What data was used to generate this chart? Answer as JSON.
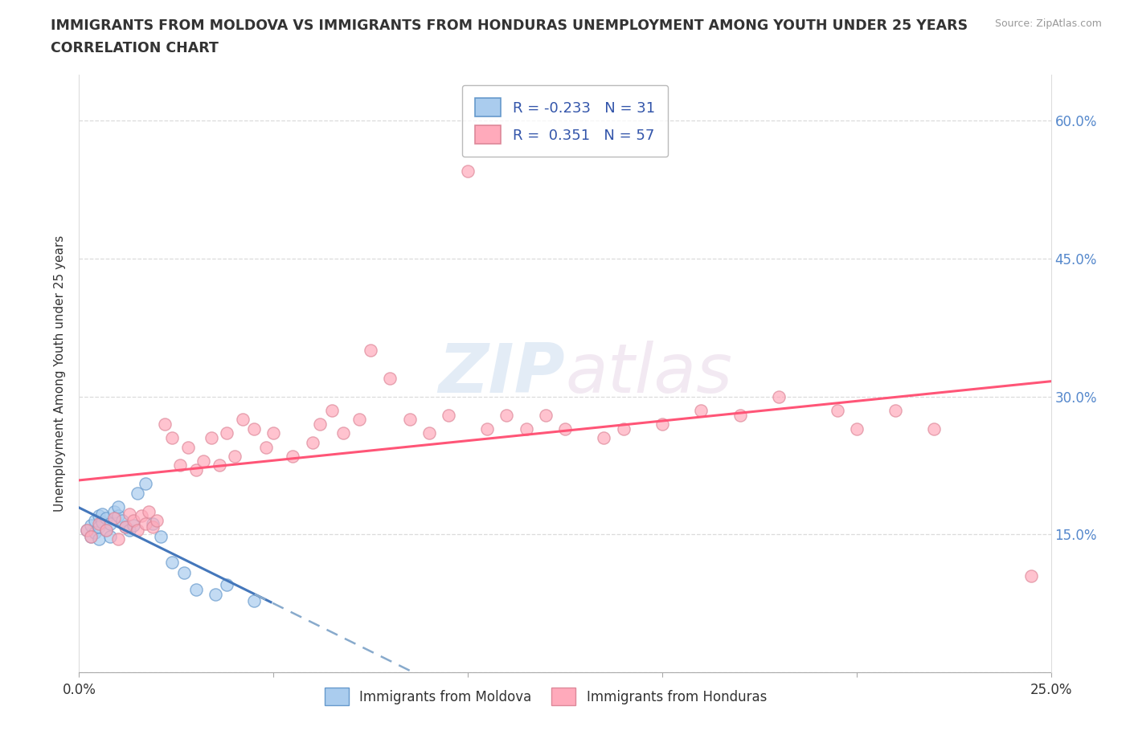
{
  "title_line1": "IMMIGRANTS FROM MOLDOVA VS IMMIGRANTS FROM HONDURAS UNEMPLOYMENT AMONG YOUTH UNDER 25 YEARS",
  "title_line2": "CORRELATION CHART",
  "source": "Source: ZipAtlas.com",
  "ylabel": "Unemployment Among Youth under 25 years",
  "xlim": [
    0.0,
    0.25
  ],
  "ylim": [
    0.0,
    0.65
  ],
  "xtick_vals": [
    0.0,
    0.05,
    0.1,
    0.15,
    0.2,
    0.25
  ],
  "xtick_labels": [
    "0.0%",
    "",
    "",
    "",
    "",
    "25.0%"
  ],
  "ytick_vals": [
    0.0,
    0.15,
    0.3,
    0.45,
    0.6
  ],
  "right_ytick_labels": [
    "15.0%",
    "30.0%",
    "45.0%",
    "60.0%"
  ],
  "right_ytick_vals": [
    0.15,
    0.3,
    0.45,
    0.6
  ],
  "moldova_color": "#aaccee",
  "moldova_edge": "#6699cc",
  "honduras_color": "#ffaabb",
  "honduras_edge": "#dd8899",
  "moldova_R": -0.233,
  "moldova_N": 31,
  "honduras_R": 0.351,
  "honduras_N": 57,
  "trend_moldova_solid_color": "#4477bb",
  "trend_moldova_dash_color": "#88aacc",
  "trend_honduras_color": "#ff5577",
  "watermark_zip": "ZIP",
  "watermark_atlas": "atlas",
  "legend_label_moldova": "Immigrants from Moldova",
  "legend_label_honduras": "Immigrants from Honduras",
  "background_color": "#ffffff",
  "grid_color": "#cccccc",
  "title_color": "#333333",
  "axis_label_color": "#333333",
  "right_axis_color": "#5588cc"
}
